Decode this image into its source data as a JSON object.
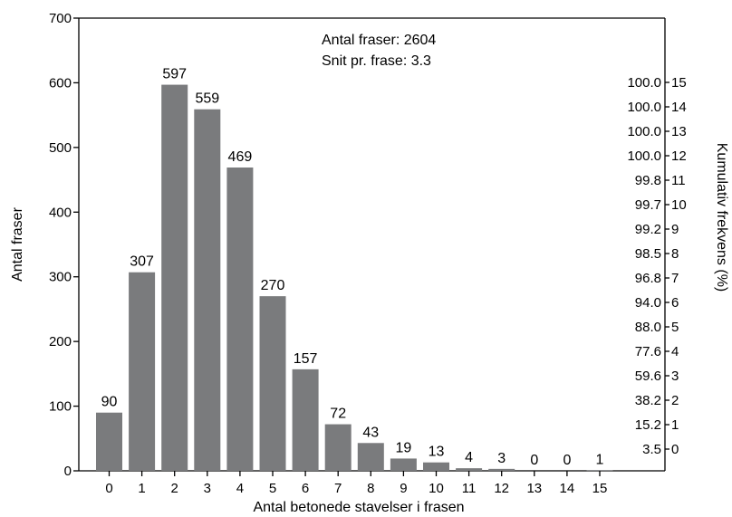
{
  "chart_data": {
    "type": "bar",
    "title": "",
    "xlabel": "Antal betonede stavelser i frasen",
    "ylabel": "Antal fraser",
    "y2label": "Kumulativ frekvens (%)",
    "categories": [
      "0",
      "1",
      "2",
      "3",
      "4",
      "5",
      "6",
      "7",
      "8",
      "9",
      "10",
      "11",
      "12",
      "13",
      "14",
      "15"
    ],
    "values": [
      90,
      307,
      597,
      559,
      469,
      270,
      157,
      72,
      43,
      19,
      13,
      4,
      3,
      0,
      0,
      1
    ],
    "value_labels": [
      "90",
      "307",
      "597",
      "559",
      "469",
      "270",
      "157",
      "72",
      "43",
      "19",
      "13",
      "4",
      "3",
      "0",
      "0",
      "1"
    ],
    "yticks": [
      0,
      100,
      200,
      300,
      400,
      500,
      600,
      700
    ],
    "ylim": [
      0,
      700
    ],
    "right_axis": {
      "ticks": [
        "0",
        "1",
        "2",
        "3",
        "4",
        "5",
        "6",
        "7",
        "8",
        "9",
        "10",
        "11",
        "12",
        "13",
        "14",
        "15"
      ],
      "cumulative_frequency": [
        "3.5",
        "15.2",
        "38.2",
        "59.6",
        "77.6",
        "88.0",
        "94.0",
        "96.8",
        "98.5",
        "99.2",
        "99.7",
        "99.8",
        "100.0",
        "100.0",
        "100.0",
        "100.0"
      ]
    },
    "annotations": [
      "Antal fraser: 2604",
      "Snit pr. frase: 3.3"
    ],
    "bar_color": "#7a7b7d",
    "grid": false,
    "legend": "none"
  }
}
